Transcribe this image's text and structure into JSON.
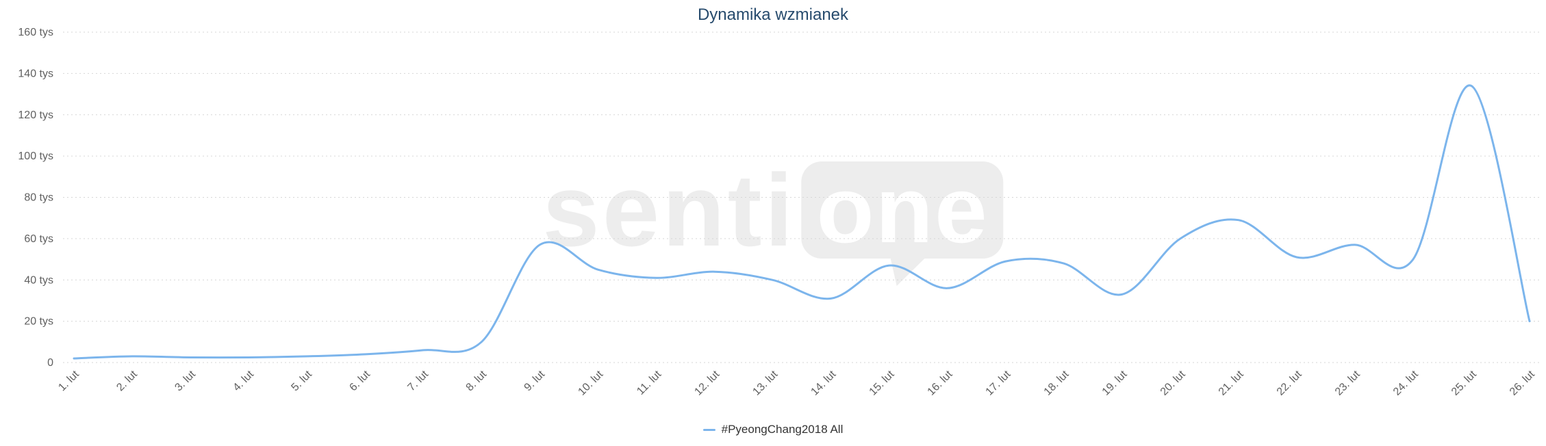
{
  "chart_data": {
    "type": "line",
    "title": "Dynamika wzmianek",
    "categories": [
      "1. lut",
      "2. lut",
      "3. lut",
      "4. lut",
      "5. lut",
      "6. lut",
      "7. lut",
      "8. lut",
      "9. lut",
      "10. lut",
      "11. lut",
      "12. lut",
      "13. lut",
      "14. lut",
      "15. lut",
      "16. lut",
      "17. lut",
      "18. lut",
      "19. lut",
      "20. lut",
      "21. lut",
      "22. lut",
      "23. lut",
      "24. lut",
      "25. lut",
      "26. lut"
    ],
    "series": [
      {
        "name": "#PyeongChang2018 All",
        "color": "#7cb5ec",
        "values_tys": [
          2,
          3,
          2.5,
          2.5,
          3,
          4,
          6,
          10,
          57,
          45,
          41,
          44,
          40,
          31,
          47,
          36,
          49,
          48,
          33,
          60,
          69,
          51,
          57,
          50,
          134,
          20
        ]
      }
    ],
    "y_ticks": [
      "0",
      "20 tys",
      "40 tys",
      "60 tys",
      "80 tys",
      "100 tys",
      "120 tys",
      "140 tys",
      "160 tys"
    ],
    "ylim_tys": [
      0,
      160
    ],
    "xlabel": "",
    "ylabel": "",
    "grid": "horizontal dotted",
    "line_style": "smooth spline",
    "legend_position": "bottom-center",
    "x_label_rotation": -45
  },
  "watermark": {
    "senti": "senti",
    "one": "one"
  },
  "colors": {
    "title": "#274b6d",
    "axis_labels": "#606060",
    "gridline": "#d6d6d6",
    "legend_text": "#333333",
    "series": "#7cb5ec",
    "watermark": "#ededed",
    "background": "#ffffff"
  }
}
